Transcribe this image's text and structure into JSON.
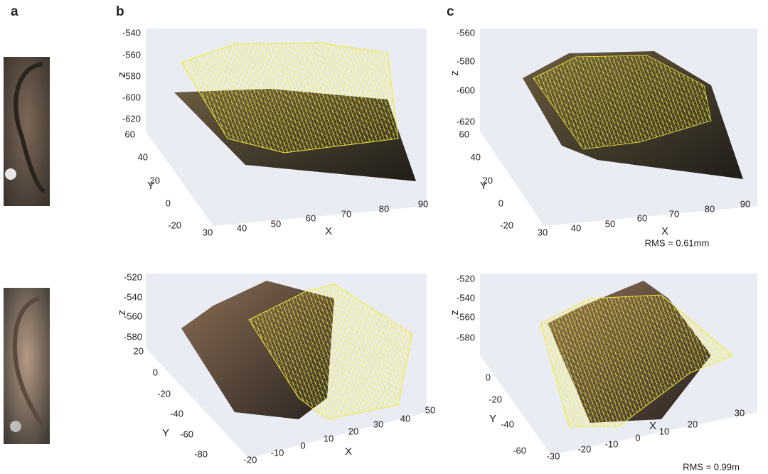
{
  "panel_labels": [
    "a",
    "b",
    "c"
  ],
  "plots": [
    {
      "z_label": "z",
      "y_label": "Y",
      "x_label": "X",
      "z_ticks": [
        -540,
        -560,
        -580,
        -600,
        -620
      ],
      "y_ticks": [
        60,
        40,
        20,
        0,
        -20
      ],
      "x_ticks": [
        30,
        40,
        50,
        60,
        70,
        80,
        90
      ]
    },
    {
      "z_label": "z",
      "y_label": "Y",
      "x_label": "X",
      "z_ticks": [
        -560,
        -580,
        -600,
        -620
      ],
      "y_ticks": [
        60,
        40,
        20,
        0,
        -20
      ],
      "x_ticks": [
        30,
        40,
        50,
        60,
        70,
        80,
        90
      ],
      "rms": "RMS = 0.61mm"
    },
    {
      "z_label": "z",
      "y_label": "Y",
      "x_label": "X",
      "z_ticks": [
        -520,
        -540,
        -560,
        -580
      ],
      "y_ticks": [
        20,
        0,
        -20,
        -40,
        -60,
        -80
      ],
      "x_ticks": [
        -20,
        -10,
        0,
        10,
        20,
        30,
        40,
        50
      ]
    },
    {
      "z_label": "z",
      "y_label": "Y",
      "x_label": "X",
      "z_ticks": [
        -520,
        -540,
        -560,
        -580
      ],
      "y_ticks": [
        0,
        -20,
        -40,
        -60
      ],
      "x_ticks": [
        -30,
        -20,
        -10,
        0,
        10,
        20,
        30
      ],
      "rms": "RMS = 0.99m"
    }
  ]
}
